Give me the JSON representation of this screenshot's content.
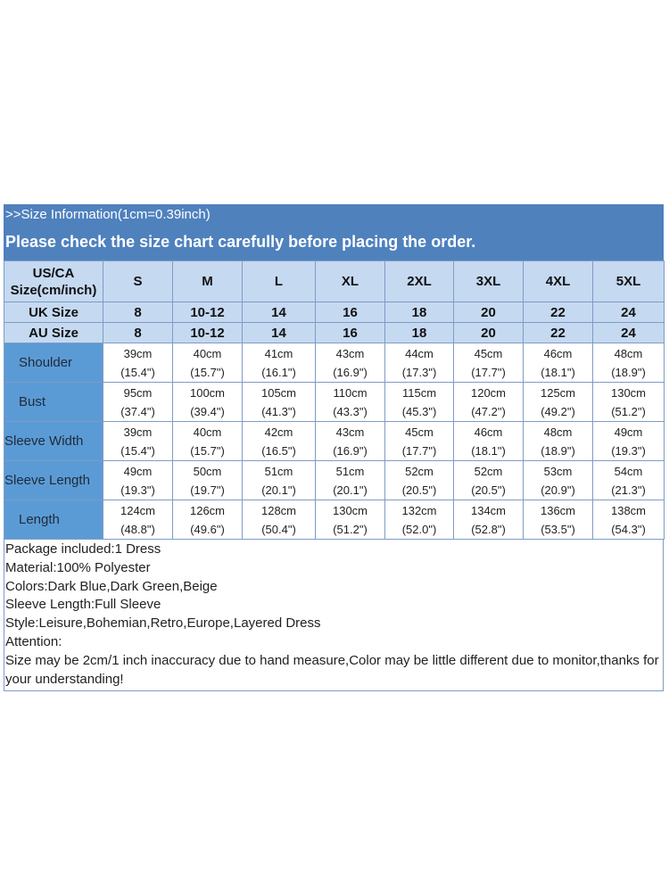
{
  "title": ">>Size Information(1cm=0.39inch)",
  "subtitle": "Please check the size chart carefully before placing the order.",
  "table": {
    "header_label": "US/CA Size(cm/inch)",
    "sizes": [
      "S",
      "M",
      "L",
      "XL",
      "2XL",
      "3XL",
      "4XL",
      "5XL"
    ],
    "uk_label": "UK Size",
    "uk": [
      "8",
      "10-12",
      "14",
      "16",
      "18",
      "20",
      "22",
      "24"
    ],
    "au_label": "AU Size",
    "au": [
      "8",
      "10-12",
      "14",
      "16",
      "18",
      "20",
      "22",
      "24"
    ],
    "rows": [
      {
        "label": "Shoulder",
        "indent": true,
        "cm": [
          "39cm",
          "40cm",
          "41cm",
          "43cm",
          "44cm",
          "45cm",
          "46cm",
          "48cm"
        ],
        "in": [
          "(15.4\")",
          "(15.7\")",
          "(16.1\")",
          "(16.9\")",
          "(17.3\")",
          "(17.7\")",
          "(18.1\")",
          "(18.9\")"
        ]
      },
      {
        "label": "Bust",
        "indent": true,
        "cm": [
          "95cm",
          "100cm",
          "105cm",
          "110cm",
          "115cm",
          "120cm",
          "125cm",
          "130cm"
        ],
        "in": [
          "(37.4\")",
          "(39.4\")",
          "(41.3\")",
          "(43.3\")",
          "(45.3\")",
          "(47.2\")",
          "(49.2\")",
          "(51.2\")"
        ]
      },
      {
        "label": "Sleeve Width",
        "indent": false,
        "cm": [
          "39cm",
          "40cm",
          "42cm",
          "43cm",
          "45cm",
          "46cm",
          "48cm",
          "49cm"
        ],
        "in": [
          "(15.4\")",
          "(15.7\")",
          "(16.5\")",
          "(16.9\")",
          "(17.7\")",
          "(18.1\")",
          "(18.9\")",
          "(19.3\")"
        ]
      },
      {
        "label": "Sleeve Length",
        "indent": false,
        "cm": [
          "49cm",
          "50cm",
          "51cm",
          "51cm",
          "52cm",
          "52cm",
          "53cm",
          "54cm"
        ],
        "in": [
          "(19.3\")",
          "(19.7\")",
          "(20.1\")",
          "(20.1\")",
          "(20.5\")",
          "(20.5\")",
          "(20.9\")",
          "(21.3\")"
        ]
      },
      {
        "label": "Length",
        "indent": true,
        "cm": [
          "124cm",
          "126cm",
          "128cm",
          "130cm",
          "132cm",
          "134cm",
          "136cm",
          "138cm"
        ],
        "in": [
          "(48.8\")",
          "(49.6\")",
          "(50.4\")",
          "(51.2\")",
          "(52.0\")",
          "(52.8\")",
          "(53.5\")",
          "(54.3\")"
        ]
      }
    ]
  },
  "notes": [
    "Package included:1 Dress",
    "Material:100% Polyester",
    "Colors:Dark Blue,Dark Green,Beige",
    "Sleeve Length:Full Sleeve",
    "Style:Leisure,Bohemian,Retro,Europe,Layered Dress",
    "Attention:",
    "Size may be 2cm/1 inch inaccuracy due to hand measure,Color may be little different due to monitor,thanks for your understanding!"
  ]
}
